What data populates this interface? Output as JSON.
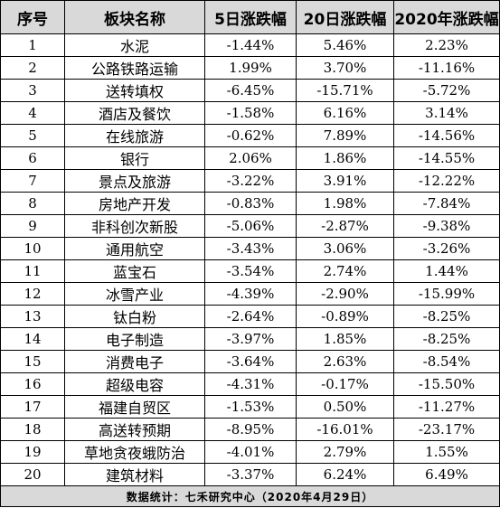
{
  "table": {
    "headers": [
      "序号",
      "板块名称",
      "5日涨跌幅",
      "20日涨跌幅",
      "2020年涨跌幅"
    ],
    "rows": [
      [
        "1",
        "水泥",
        "-1.44%",
        "5.46%",
        "2.23%"
      ],
      [
        "2",
        "公路铁路运输",
        "1.99%",
        "3.70%",
        "-11.16%"
      ],
      [
        "3",
        "送转填权",
        "-6.45%",
        "-15.71%",
        "-5.72%"
      ],
      [
        "4",
        "酒店及餐饮",
        "-1.58%",
        "6.16%",
        "3.14%"
      ],
      [
        "5",
        "在线旅游",
        "-0.62%",
        "7.89%",
        "-14.56%"
      ],
      [
        "6",
        "银行",
        "2.06%",
        "1.86%",
        "-14.55%"
      ],
      [
        "7",
        "景点及旅游",
        "-3.22%",
        "3.91%",
        "-12.22%"
      ],
      [
        "8",
        "房地产开发",
        "-0.83%",
        "1.98%",
        "-7.84%"
      ],
      [
        "9",
        "非科创次新股",
        "-5.06%",
        "-2.87%",
        "-9.38%"
      ],
      [
        "10",
        "通用航空",
        "-3.43%",
        "3.06%",
        "-3.26%"
      ],
      [
        "11",
        "蓝宝石",
        "-3.54%",
        "2.74%",
        "1.44%"
      ],
      [
        "12",
        "冰雪产业",
        "-4.39%",
        "-2.90%",
        "-15.99%"
      ],
      [
        "13",
        "钛白粉",
        "-2.64%",
        "-0.89%",
        "-8.25%"
      ],
      [
        "14",
        "电子制造",
        "-3.97%",
        "1.85%",
        "-8.25%"
      ],
      [
        "15",
        "消费电子",
        "-3.64%",
        "2.63%",
        "-8.54%"
      ],
      [
        "16",
        "超级电容",
        "-4.31%",
        "-0.17%",
        "-15.50%"
      ],
      [
        "17",
        "福建自贸区",
        "-1.53%",
        "0.50%",
        "-11.27%"
      ],
      [
        "18",
        "高送转预期",
        "-8.95%",
        "-16.01%",
        "-23.17%"
      ],
      [
        "19",
        "草地贪夜蛾防治",
        "-4.01%",
        "2.79%",
        "1.55%"
      ],
      [
        "20",
        "建筑材料",
        "-3.37%",
        "6.24%",
        "6.49%"
      ]
    ],
    "footer": "数据统计：七禾研究中心（2020年4月29日）"
  }
}
